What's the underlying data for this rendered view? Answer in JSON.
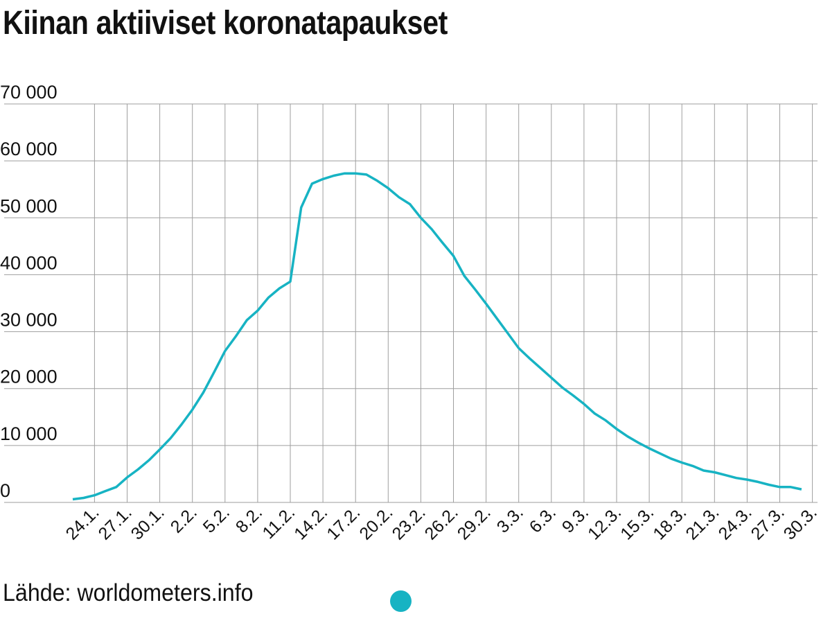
{
  "title": "Kiinan aktiiviset koronatapaukset",
  "source": "Lähde: worldometers.info",
  "colors": {
    "line": "#17b3c3",
    "grid": "#9e9e9e",
    "text": "#111111"
  },
  "chart_data": {
    "type": "line",
    "title": "Kiinan aktiiviset koronatapaukset",
    "ylim": [
      0,
      70000
    ],
    "yticks": [
      0,
      10000,
      20000,
      30000,
      40000,
      50000,
      60000,
      70000
    ],
    "ytick_labels": [
      "0",
      "10 000",
      "20 000",
      "30 000",
      "40 000",
      "50 000",
      "60 000",
      "70 000"
    ],
    "xtick_labels": [
      "24.1.",
      "27.1.",
      "30.1.",
      "2.2.",
      "5.2.",
      "8.2.",
      "11.2.",
      "14.2.",
      "17.2.",
      "20.2.",
      "23.2.",
      "26.2.",
      "29.2.",
      "3.3.",
      "6.3.",
      "9.3.",
      "12.3.",
      "15.3.",
      "18.3.",
      "21.3.",
      "24.3.",
      "27.3.",
      "30.3."
    ],
    "grid": true,
    "legend": "bottom",
    "series": [
      {
        "start_date": "22.1.",
        "values": [
          550,
          790,
          1250,
          2000,
          2700,
          4400,
          5800,
          7400,
          9300,
          11300,
          13700,
          16300,
          19300,
          22900,
          26600,
          29200,
          32000,
          33700,
          36000,
          37600,
          38800,
          51800,
          56000,
          56800,
          57400,
          57800,
          57800,
          57600,
          56500,
          55200,
          53600,
          52400,
          50000,
          48000,
          45600,
          43300,
          39800,
          37400,
          34900,
          32300,
          29700,
          27100,
          25300,
          23600,
          21900,
          20200,
          18800,
          17300,
          15600,
          14400,
          12900,
          11600,
          10500,
          9500,
          8600,
          7700,
          7000,
          6400,
          5600,
          5300,
          4800,
          4300,
          4000,
          3600,
          3100,
          2700,
          2700,
          2300
        ]
      }
    ]
  }
}
